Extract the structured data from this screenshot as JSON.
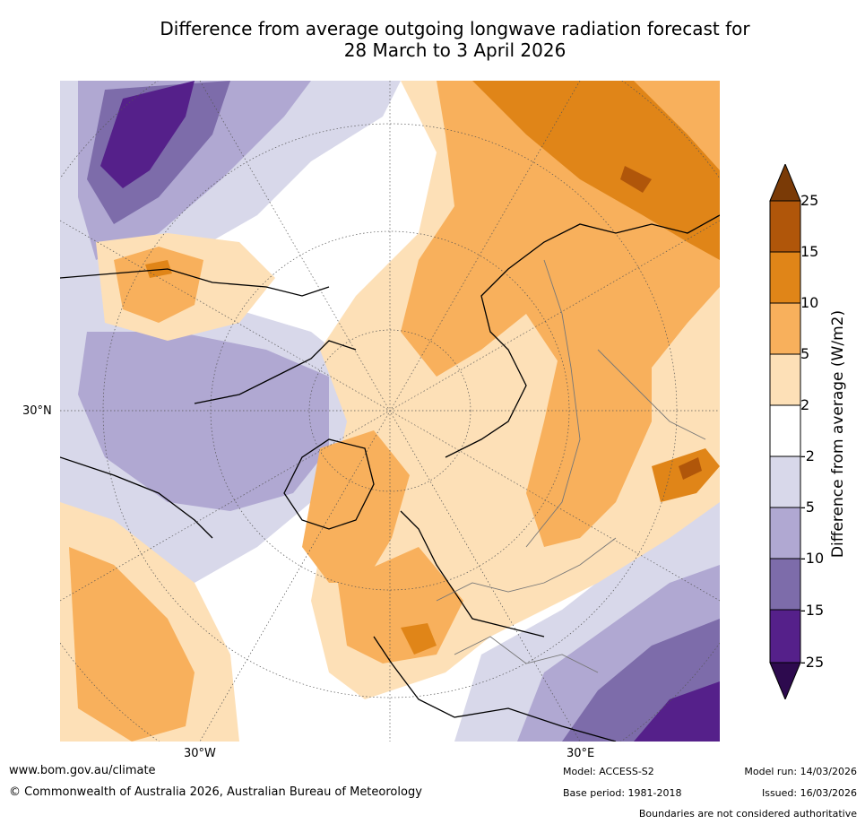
{
  "title": {
    "line1": "Difference from average outgoing longwave radiation forecast for",
    "line2": "28 March to 3 April 2026"
  },
  "map": {
    "projection": "north-polar-stereographic",
    "lat_label": "30°N",
    "lon_labels": [
      "30°W",
      "30°E"
    ]
  },
  "legend": {
    "title": "Difference from average (W/m2)",
    "ticks": [
      "25",
      "15",
      "10",
      "5",
      "2",
      "-2",
      "-5",
      "-10",
      "-15",
      "-25"
    ],
    "colors": [
      "#7a3a06",
      "#b0560a",
      "#e08518",
      "#f8b05c",
      "#fde0b7",
      "#ffffff",
      "#d8d8ea",
      "#b0a8d2",
      "#7d6caa",
      "#55208a",
      "#2d0a4e"
    ]
  },
  "footer": {
    "url": "www.bom.gov.au/climate",
    "copyright": "© Commonwealth of Australia 2026, Australian Bureau of Meteorology",
    "model": "Model: ACCESS-S2",
    "base_period": "Base period: 1981-2018",
    "model_run": "Model run: 14/03/2026",
    "issued": "Issued: 16/03/2026",
    "disclaimer": "Boundaries are not considered authoritative"
  }
}
